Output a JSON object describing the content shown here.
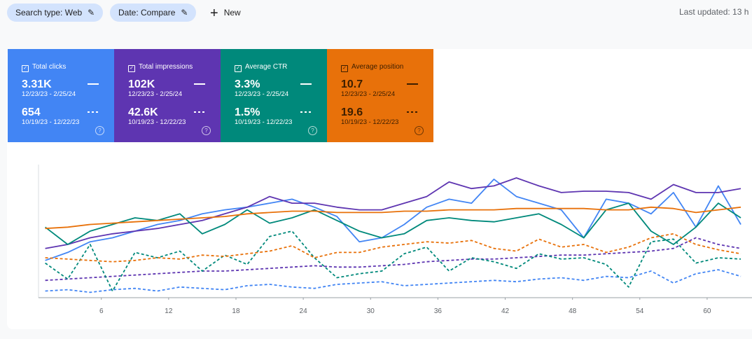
{
  "toolbar": {
    "chips": [
      "Search type: Web",
      "Date: Compare"
    ],
    "new_button": "New",
    "last_updated": "Last updated: 13 h"
  },
  "metrics": [
    {
      "label": "Total clicks",
      "value": "3.31K",
      "range": "12/23/23 - 2/25/24",
      "previous_value": "654",
      "previous_range": "10/19/23 - 12/22/23",
      "color": "#4285f4",
      "text_color": "#ffffff"
    },
    {
      "label": "Total impressions",
      "value": "102K",
      "range": "12/23/23 - 2/25/24",
      "previous_value": "42.6K",
      "previous_range": "10/19/23 - 12/22/23",
      "color": "#5e35b1",
      "text_color": "#ffffff"
    },
    {
      "label": "Average CTR",
      "value": "3.3%",
      "range": "12/23/23 - 2/25/24",
      "previous_value": "1.5%",
      "previous_range": "10/19/23 - 12/22/23",
      "color": "#00897b",
      "text_color": "#ffffff"
    },
    {
      "label": "Average position",
      "value": "10.7",
      "range": "12/23/23 - 2/25/24",
      "previous_value": "19.6",
      "previous_range": "10/19/23 - 12/22/23",
      "color": "#e8710a",
      "text_color": "#3c1e00"
    }
  ],
  "chart_data": {
    "type": "line",
    "x": [
      1,
      3,
      5,
      7,
      9,
      11,
      13,
      15,
      17,
      19,
      21,
      23,
      25,
      27,
      29,
      31,
      33,
      35,
      37,
      39,
      41,
      43,
      45,
      47,
      49,
      51,
      53,
      55,
      57,
      59,
      61,
      63
    ],
    "xlim": [
      0.4,
      64
    ],
    "xticks": [
      6,
      12,
      18,
      24,
      30,
      36,
      42,
      48,
      54,
      60
    ],
    "ylim": [
      0,
      100
    ],
    "series": [
      {
        "color": "#4285f4",
        "dashed": false,
        "values": [
          28,
          34,
          42,
          45,
          50,
          55,
          58,
          63,
          66,
          68,
          71,
          74,
          68,
          61,
          42,
          45,
          55,
          68,
          74,
          71,
          89,
          76,
          71,
          66,
          45,
          74,
          71,
          63,
          79,
          53,
          84,
          55
        ]
      },
      {
        "color": "#5e35b1",
        "dashed": false,
        "values": [
          37,
          40,
          45,
          48,
          50,
          52,
          55,
          58,
          63,
          68,
          76,
          71,
          71,
          68,
          66,
          66,
          71,
          76,
          87,
          82,
          84,
          90,
          84,
          79,
          80,
          80,
          79,
          74,
          85,
          79,
          79,
          82
        ]
      },
      {
        "color": "#00897b",
        "dashed": false,
        "values": [
          53,
          40,
          50,
          55,
          60,
          58,
          63,
          48,
          55,
          66,
          56,
          60,
          66,
          58,
          50,
          45,
          48,
          58,
          60,
          58,
          57,
          60,
          63,
          55,
          45,
          66,
          71,
          50,
          40,
          53,
          71,
          60
        ]
      },
      {
        "color": "#e8710a",
        "dashed": false,
        "values": [
          52,
          53,
          55,
          56,
          57,
          58,
          59,
          60,
          61,
          63,
          64,
          65,
          65,
          64,
          64,
          64,
          65,
          65,
          66,
          66,
          66,
          67,
          67,
          67,
          67,
          66,
          66,
          68,
          67,
          64,
          66,
          68
        ]
      },
      {
        "color": "#4285f4",
        "dashed": true,
        "values": [
          5,
          6,
          4,
          6,
          7,
          5,
          8,
          7,
          6,
          9,
          10,
          8,
          7,
          10,
          11,
          12,
          9,
          10,
          11,
          12,
          13,
          12,
          14,
          15,
          13,
          16,
          15,
          20,
          11,
          18,
          21,
          16
        ]
      },
      {
        "color": "#5e35b1",
        "dashed": true,
        "values": [
          13,
          14,
          15,
          16,
          17,
          18,
          19,
          20,
          20,
          21,
          22,
          23,
          24,
          23,
          23,
          24,
          25,
          27,
          28,
          29,
          29,
          30,
          31,
          32,
          32,
          33,
          34,
          35,
          37,
          45,
          40,
          37
        ]
      },
      {
        "color": "#00897b",
        "dashed": true,
        "values": [
          26,
          14,
          40,
          5,
          34,
          30,
          35,
          20,
          32,
          25,
          46,
          50,
          30,
          15,
          18,
          20,
          33,
          38,
          20,
          30,
          27,
          22,
          33,
          29,
          30,
          25,
          8,
          42,
          44,
          26,
          30,
          29
        ]
      },
      {
        "color": "#e8710a",
        "dashed": true,
        "values": [
          30,
          29,
          28,
          27,
          28,
          30,
          29,
          32,
          31,
          33,
          35,
          39,
          30,
          34,
          34,
          38,
          40,
          42,
          41,
          43,
          37,
          35,
          44,
          38,
          40,
          34,
          38,
          45,
          48,
          40,
          36,
          33
        ]
      }
    ]
  }
}
